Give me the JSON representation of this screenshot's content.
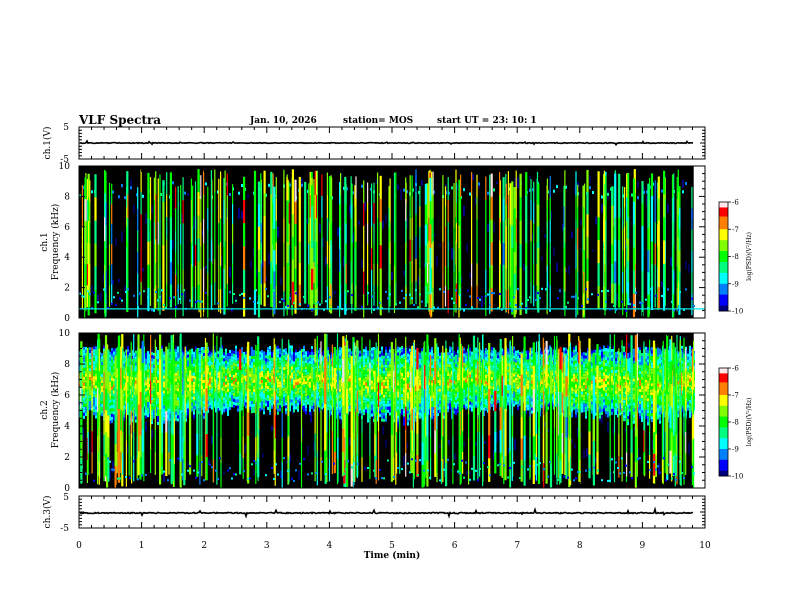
{
  "header": {
    "title": "VLF Spectra",
    "date": "Jan. 10, 2026",
    "station": "station= MOS",
    "start": "start  UT  =   23: 10: 1"
  },
  "chart_data": [
    {
      "type": "line",
      "panel": "ch1-voltage",
      "ylabel": "ch.1(V)",
      "ylim": [
        -5,
        5
      ],
      "yticks": [
        5,
        -5
      ],
      "xlim": [
        0,
        10
      ],
      "series_level": 0,
      "data_end_min": 9.82
    },
    {
      "type": "heatmap",
      "panel": "ch1-spectrogram",
      "ylabel": "ch.1\nFrequency (kHz)",
      "ylim": [
        0,
        10
      ],
      "yticks": [
        0,
        2,
        4,
        6,
        8,
        10
      ],
      "xlim": [
        0,
        10
      ],
      "data_end_min": 9.82,
      "colorbar": {
        "label": "log(PSD)(V²/Hz)",
        "range": [
          -10,
          -6
        ],
        "ticks": [
          -6,
          -7,
          -8,
          -9,
          -10
        ]
      },
      "cyan_line_khz": 0.6
    },
    {
      "type": "heatmap",
      "panel": "ch2-spectrogram",
      "ylabel": "ch.2\nFrequency (kHz)",
      "ylim": [
        0,
        10
      ],
      "yticks": [
        0,
        2,
        4,
        6,
        8,
        10
      ],
      "xlim": [
        0,
        10
      ],
      "data_end_min": 9.82,
      "colorbar": {
        "label": "log(PSD)(V²/Hz)",
        "range": [
          -10,
          -6
        ],
        "ticks": [
          -6,
          -7,
          -8,
          -9,
          -10
        ]
      }
    },
    {
      "type": "line",
      "panel": "ch3-voltage",
      "ylabel": "ch.3(V)",
      "ylim": [
        -5,
        5
      ],
      "yticks": [
        5,
        -5
      ],
      "xlim": [
        0,
        10
      ],
      "xticks": [
        0,
        1,
        2,
        3,
        4,
        5,
        6,
        7,
        8,
        9,
        10
      ],
      "xlabel": "Time (min)",
      "series_level": -0.3,
      "data_end_min": 9.82
    }
  ],
  "colors": {
    "background": "#000000",
    "cyan_line": "#00e8e8",
    "colormap": [
      "#00007f",
      "#0000ff",
      "#0080ff",
      "#00ffff",
      "#00ff80",
      "#00ff00",
      "#80ff00",
      "#ffff00",
      "#ff8000",
      "#ff0000",
      "#ffe0e0"
    ]
  }
}
